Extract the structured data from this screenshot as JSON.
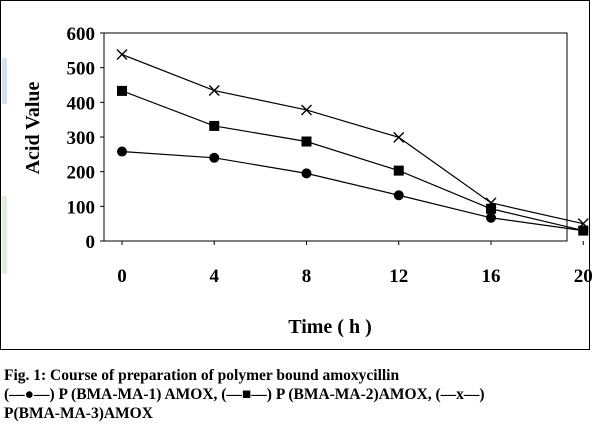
{
  "chart_data": {
    "type": "line",
    "x": [
      0,
      4,
      8,
      12,
      16,
      20
    ],
    "xlim": [
      0,
      24
    ],
    "ylim": [
      0,
      600
    ],
    "yticks": [
      0,
      100,
      200,
      300,
      400,
      500,
      600
    ],
    "xticks": [
      0,
      4,
      8,
      12,
      16,
      20
    ],
    "xlabel": "Time ( h )",
    "ylabel": "Acid Value",
    "grid": false,
    "legend": "none",
    "series": [
      {
        "marker": "circle",
        "color": "#000000",
        "values": [
          258,
          240,
          195,
          132,
          67,
          30
        ]
      },
      {
        "marker": "square",
        "color": "#000000",
        "values": [
          433,
          332,
          287,
          203,
          93,
          30
        ]
      },
      {
        "marker": "x",
        "color": "#000000",
        "values": [
          538,
          434,
          378,
          299,
          110,
          50
        ]
      }
    ]
  },
  "caption": {
    "line1": "Fig. 1: Course of preparation of polymer bound amoxycillin",
    "line2": "(—●—) P (BMA-MA-1) AMOX, (—■—) P (BMA-MA-2)AMOX, (—x—)",
    "line3": "P(BMA-MA-3)AMOX"
  }
}
